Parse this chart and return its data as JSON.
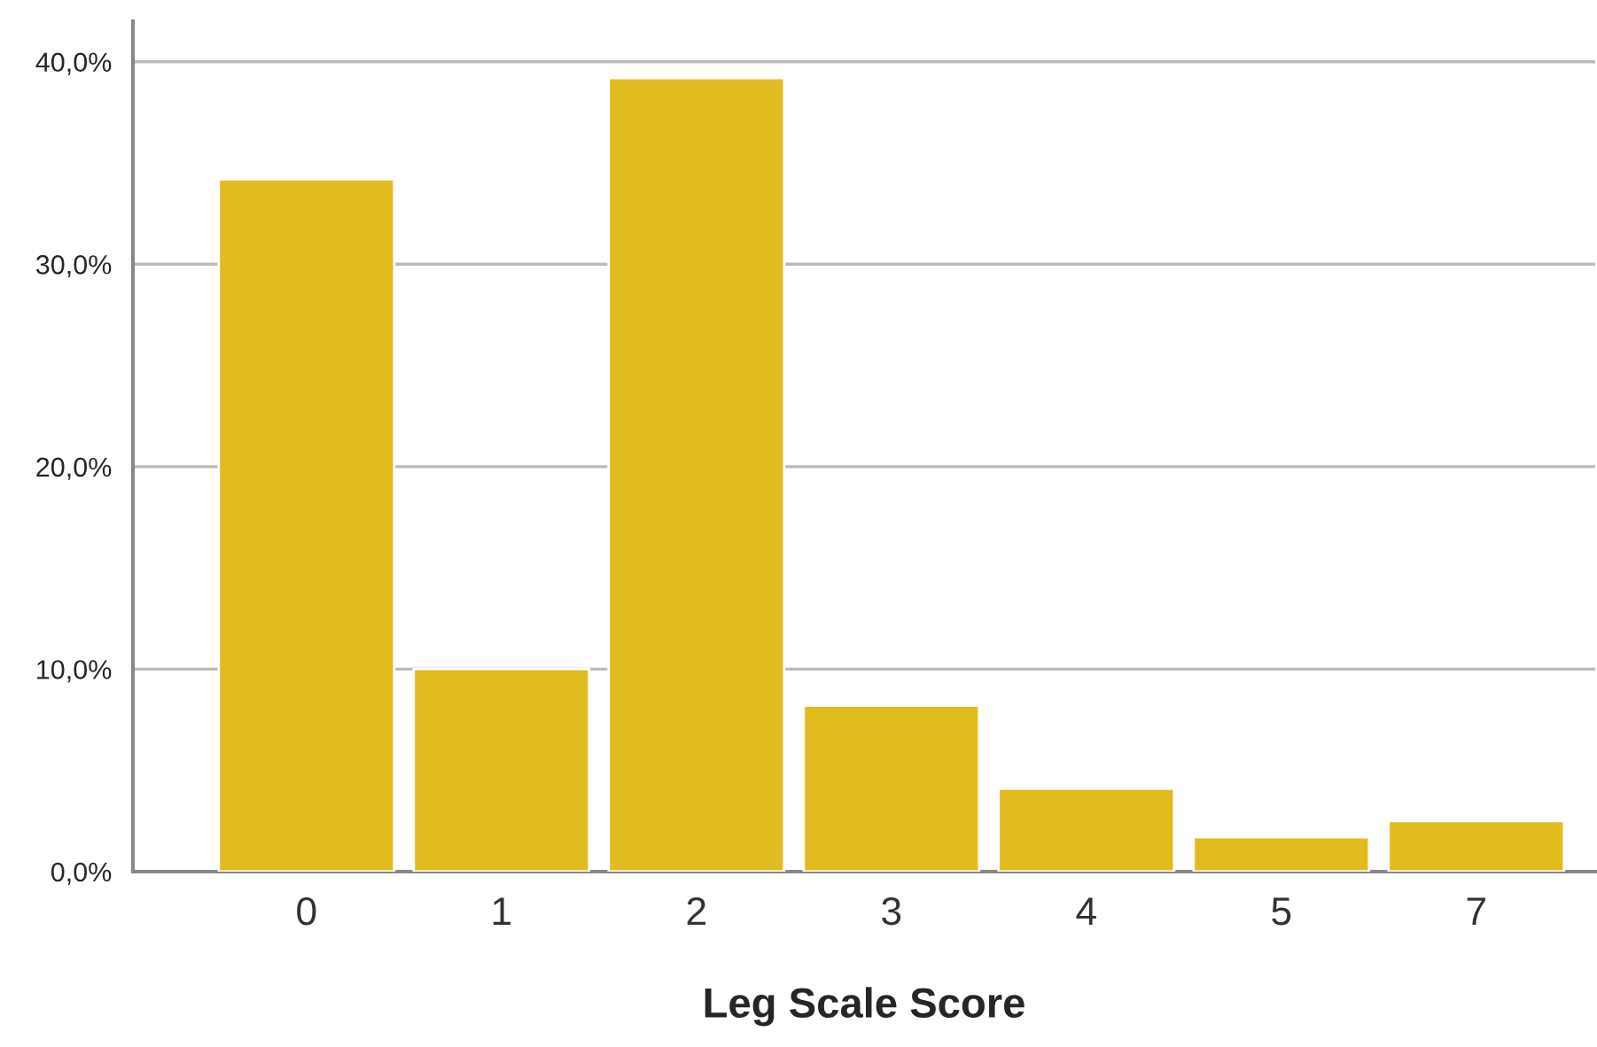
{
  "chart_data": {
    "type": "bar",
    "xlabel": "Leg Scale Score",
    "categories": [
      "0",
      "1",
      "2",
      "3",
      "4",
      "5",
      "7"
    ],
    "values": [
      34.2,
      10.0,
      39.2,
      8.2,
      4.1,
      1.7,
      2.5
    ],
    "color": "#e1bc1f",
    "ylim": [
      0,
      42
    ],
    "yticks": [
      {
        "value": 0,
        "label": "0,0%"
      },
      {
        "value": 10,
        "label": "10,0%"
      },
      {
        "value": 20,
        "label": "20,0%"
      },
      {
        "value": 30,
        "label": "30,0%"
      },
      {
        "value": 40,
        "label": "40,0%"
      }
    ],
    "grid": "y"
  }
}
